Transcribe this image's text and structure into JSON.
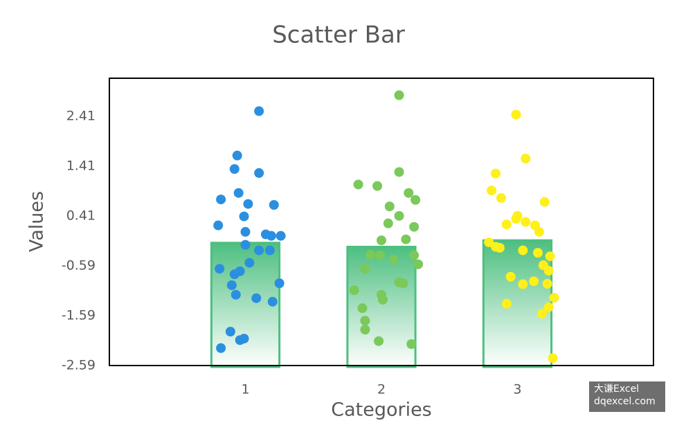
{
  "chart_data": {
    "type": "bar",
    "title": "Scatter Bar",
    "xlabel": "Categories",
    "ylabel": "Values",
    "x": [
      1,
      2,
      3
    ],
    "values": [
      -0.13,
      -0.21,
      -0.08
    ],
    "color": "#4dbf80",
    "xlim": [
      0,
      4
    ],
    "xticks": [
      1,
      2,
      3
    ],
    "ylim": [
      -2.59,
      3.17
    ],
    "yticks": [
      -2.59,
      -1.59,
      -0.59,
      0.41,
      1.41,
      2.41
    ],
    "grid": false,
    "series": [
      {
        "type": "scatter",
        "color": "#2b8fe0",
        "x": [
          1.1,
          0.94,
          0.92,
          1.1,
          0.95,
          0.82,
          1.02,
          1.21,
          0.99,
          0.8,
          1.0,
          1.15,
          1.19,
          1.26,
          1.0,
          1.1,
          1.18,
          1.03,
          0.81,
          0.96,
          0.92,
          0.9,
          1.25,
          0.93,
          1.08,
          1.2,
          0.89,
          0.99,
          0.96,
          0.82
        ],
        "values": [
          2.51,
          1.62,
          1.35,
          1.27,
          0.87,
          0.74,
          0.65,
          0.63,
          0.4,
          0.22,
          0.09,
          0.04,
          0.01,
          0.01,
          -0.17,
          -0.28,
          -0.28,
          -0.53,
          -0.65,
          -0.7,
          -0.76,
          -0.98,
          -0.94,
          -1.17,
          -1.24,
          -1.31,
          -1.91,
          -2.05,
          -2.08,
          -2.24
        ]
      },
      {
        "type": "scatter",
        "color": "#7ac95a",
        "x": [
          2.13,
          2.13,
          1.83,
          1.97,
          2.2,
          2.25,
          2.06,
          2.13,
          2.05,
          2.24,
          2.0,
          2.18,
          1.92,
          1.99,
          2.09,
          2.24,
          2.27,
          1.88,
          2.13,
          2.16,
          1.8,
          2.0,
          2.01,
          1.86,
          1.88,
          1.88,
          1.98,
          2.22
        ],
        "values": [
          2.83,
          1.29,
          1.04,
          1.01,
          0.87,
          0.73,
          0.6,
          0.41,
          0.26,
          0.19,
          -0.08,
          -0.06,
          -0.37,
          -0.38,
          -0.47,
          -0.38,
          -0.56,
          -0.65,
          -0.92,
          -0.94,
          -1.08,
          -1.17,
          -1.27,
          -1.44,
          -1.69,
          -1.87,
          -2.1,
          -2.16
        ]
      },
      {
        "type": "scatter",
        "color": "#ffef1a",
        "x": [
          2.99,
          3.06,
          2.84,
          2.81,
          2.88,
          3.2,
          3.0,
          2.99,
          3.06,
          2.92,
          3.13,
          3.16,
          2.79,
          2.84,
          2.87,
          3.04,
          3.15,
          3.24,
          3.19,
          3.23,
          2.95,
          3.12,
          3.04,
          3.22,
          3.27,
          3.23,
          2.92,
          3.18,
          3.26
        ],
        "values": [
          2.44,
          1.56,
          1.26,
          0.92,
          0.77,
          0.69,
          0.41,
          0.35,
          0.29,
          0.24,
          0.22,
          0.09,
          -0.12,
          -0.21,
          -0.23,
          -0.28,
          -0.33,
          -0.4,
          -0.58,
          -0.69,
          -0.81,
          -0.9,
          -0.96,
          -0.95,
          -1.23,
          -1.42,
          -1.35,
          -1.55,
          -2.44
        ]
      }
    ]
  },
  "watermark": [
    "大谦Excel",
    "dqexcel.com"
  ]
}
